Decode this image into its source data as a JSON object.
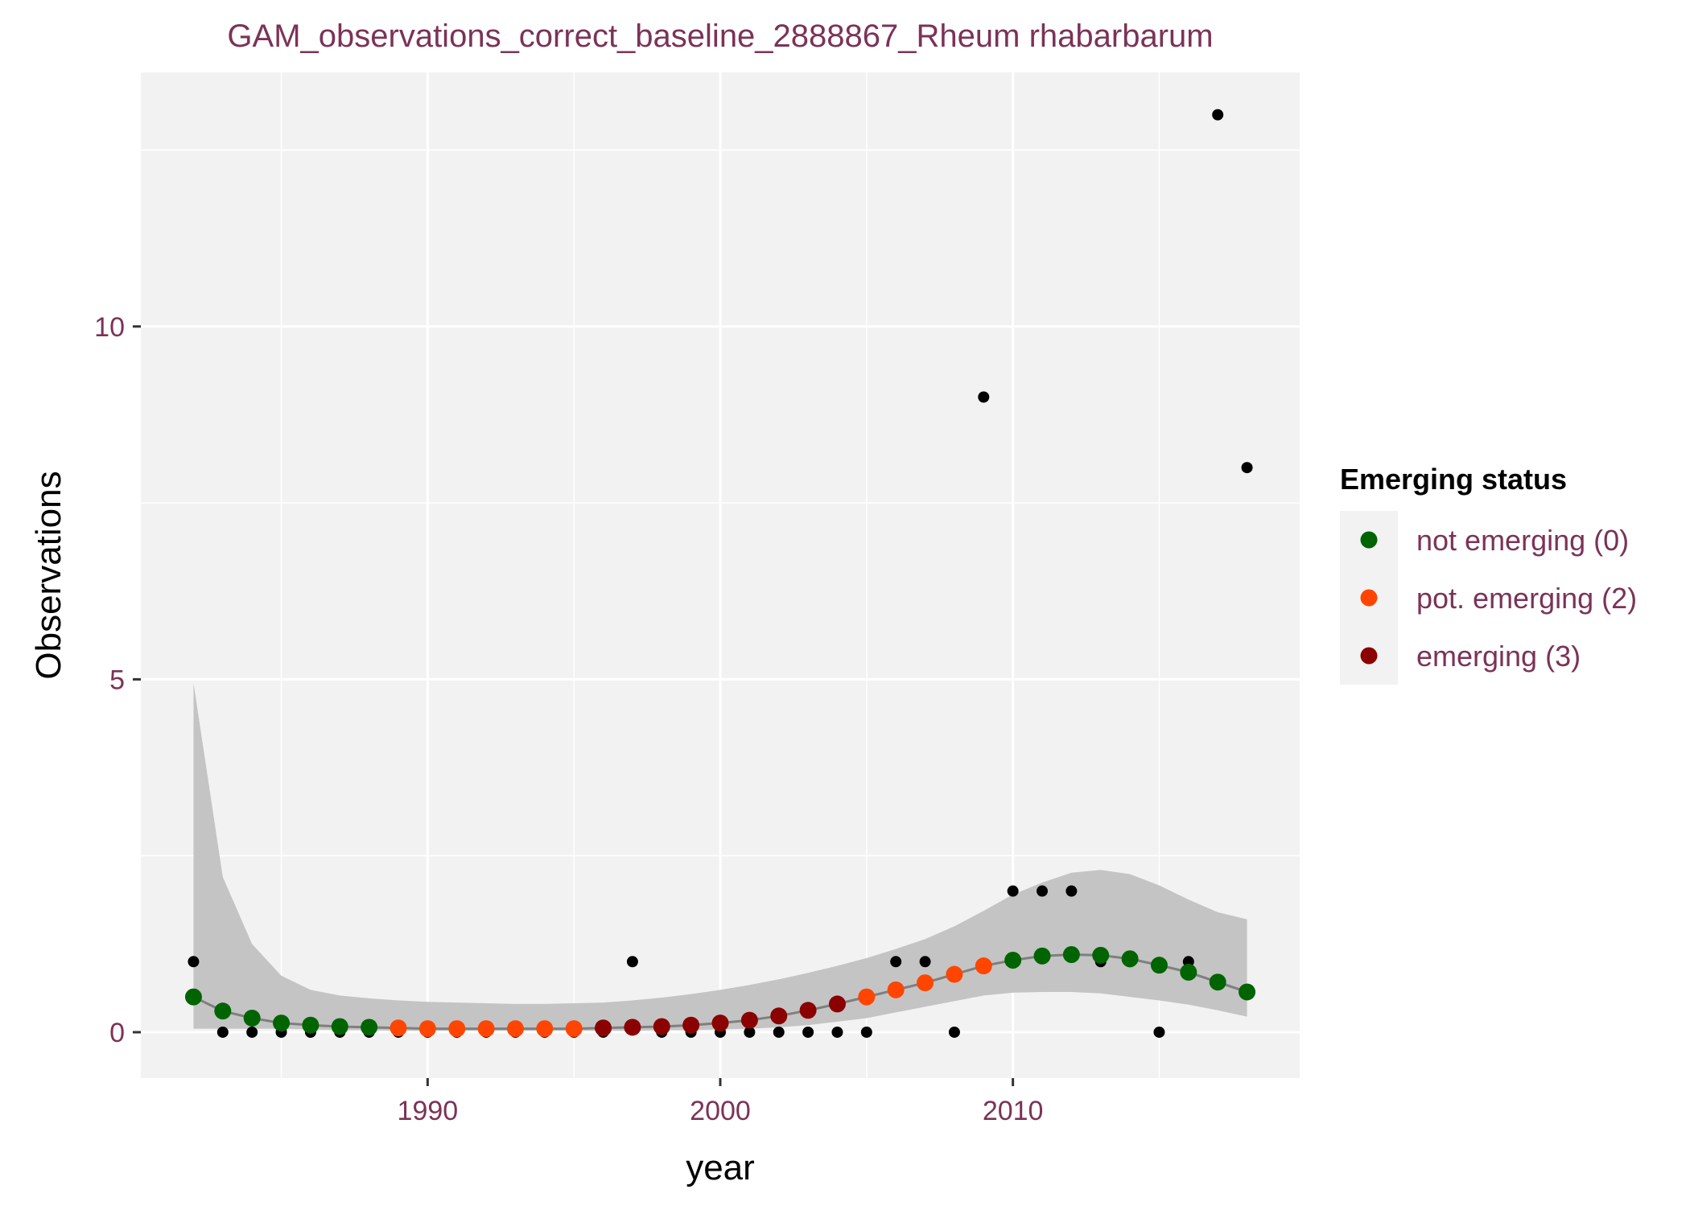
{
  "chart_data": {
    "type": "scatter",
    "title": "GAM_observations_correct_baseline_2888867_Rheum rhabarbarum",
    "xlabel": "year",
    "ylabel": "Observations",
    "xlim": [
      1980.2,
      2019.8
    ],
    "ylim": [
      -0.65,
      13.6
    ],
    "x_ticks": [
      1990,
      2000,
      2010
    ],
    "y_ticks": [
      0,
      5,
      10
    ],
    "grid": true,
    "legend": {
      "title": "Emerging status",
      "position": "right",
      "entries": [
        {
          "label": "not emerging (0)",
          "color": "#006400"
        },
        {
          "label": "pot. emerging (2)",
          "color": "#ff4500"
        },
        {
          "label": "emerging (3)",
          "color": "#8b0000"
        }
      ]
    },
    "observed": {
      "color": "#000000",
      "x": [
        1982,
        1983,
        1984,
        1985,
        1986,
        1987,
        1988,
        1989,
        1990,
        1991,
        1992,
        1993,
        1994,
        1995,
        1996,
        1997,
        1998,
        1999,
        2000,
        2001,
        2002,
        2003,
        2004,
        2005,
        2006,
        2007,
        2008,
        2009,
        2010,
        2011,
        2012,
        2013,
        2014,
        2015,
        2016,
        2017,
        2018
      ],
      "y": [
        1,
        0,
        0,
        0,
        0,
        0,
        0,
        0,
        0,
        0,
        0,
        0,
        0,
        0,
        0,
        1,
        0,
        0,
        0,
        0,
        0,
        0,
        0,
        0,
        1,
        1,
        0,
        9,
        2,
        2,
        2,
        1,
        1,
        0,
        1,
        13,
        8
      ]
    },
    "fit": {
      "line_color": "#7f7f7f",
      "band_color": "#c4c4c4",
      "x": [
        1982,
        1983,
        1984,
        1985,
        1986,
        1987,
        1988,
        1989,
        1990,
        1991,
        1992,
        1993,
        1994,
        1995,
        1996,
        1997,
        1998,
        1999,
        2000,
        2001,
        2002,
        2003,
        2004,
        2005,
        2006,
        2007,
        2008,
        2009,
        2010,
        2011,
        2012,
        2013,
        2014,
        2015,
        2016,
        2017,
        2018
      ],
      "y": [
        0.5,
        0.3,
        0.2,
        0.13,
        0.1,
        0.08,
        0.07,
        0.06,
        0.05,
        0.05,
        0.05,
        0.05,
        0.05,
        0.05,
        0.06,
        0.07,
        0.08,
        0.1,
        0.13,
        0.17,
        0.23,
        0.31,
        0.4,
        0.5,
        0.6,
        0.7,
        0.82,
        0.94,
        1.02,
        1.08,
        1.1,
        1.09,
        1.04,
        0.95,
        0.85,
        0.71,
        0.57
      ],
      "lower": [
        0.05,
        0.05,
        0.05,
        0.05,
        0.04,
        0.03,
        0.03,
        0.02,
        0.02,
        0.02,
        0.02,
        0.02,
        0.02,
        0.02,
        0.02,
        0.02,
        0.03,
        0.03,
        0.04,
        0.05,
        0.07,
        0.1,
        0.15,
        0.2,
        0.28,
        0.36,
        0.44,
        0.52,
        0.56,
        0.57,
        0.57,
        0.55,
        0.5,
        0.45,
        0.39,
        0.31,
        0.22
      ],
      "upper": [
        4.95,
        2.2,
        1.25,
        0.8,
        0.6,
        0.52,
        0.48,
        0.45,
        0.43,
        0.42,
        0.41,
        0.4,
        0.4,
        0.41,
        0.42,
        0.45,
        0.49,
        0.54,
        0.6,
        0.67,
        0.75,
        0.84,
        0.94,
        1.05,
        1.18,
        1.32,
        1.5,
        1.72,
        1.95,
        2.12,
        2.26,
        2.3,
        2.24,
        2.08,
        1.88,
        1.7,
        1.6
      ],
      "status": [
        0,
        0,
        0,
        0,
        0,
        0,
        0,
        2,
        2,
        2,
        2,
        2,
        2,
        2,
        3,
        3,
        3,
        3,
        3,
        3,
        3,
        3,
        3,
        2,
        2,
        2,
        2,
        2,
        0,
        0,
        0,
        0,
        0,
        0,
        0,
        0,
        0
      ]
    }
  }
}
